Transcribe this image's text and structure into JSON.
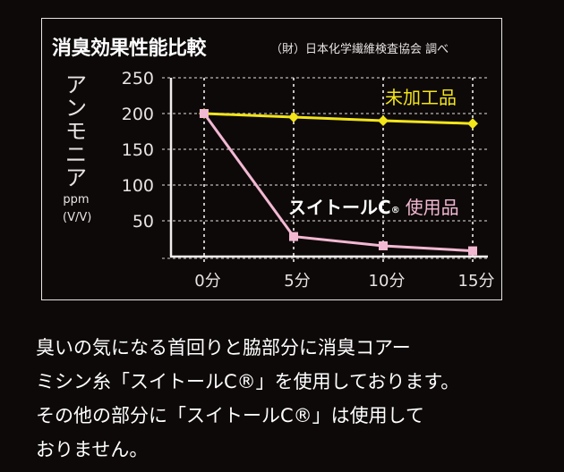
{
  "header": {
    "title": "消臭効果性能比較",
    "source": "（財）日本化学繊維検査協会 調べ"
  },
  "y_axis": {
    "label_chars": [
      "ア",
      "ン",
      "モ",
      "ニ",
      "ア"
    ],
    "unit1": "ppm",
    "unit2": "(V/V)"
  },
  "legend": {
    "untreated": "未加工品",
    "treated_brand": "スイトールC",
    "treated_reg": "®",
    "treated_suffix": "使用品"
  },
  "colors": {
    "background": "#0e0909",
    "untreated": "#f2e51a",
    "treated": "#f2b8d2",
    "text": "#ffffff",
    "grid": "#cfcaca"
  },
  "chart_data": {
    "type": "line",
    "title": "消臭効果性能比較",
    "subtitle": "（財）日本化学繊維検査協会 調べ",
    "xlabel": "",
    "ylabel": "アンモニア ppm (V/V)",
    "categories": [
      "0分",
      "5分",
      "10分",
      "15分"
    ],
    "x": [
      0,
      5,
      10,
      15
    ],
    "yticks": [
      50,
      100,
      150,
      200,
      250
    ],
    "ylim": [
      0,
      250
    ],
    "grid": true,
    "series": [
      {
        "name": "未加工品",
        "color": "#f2e51a",
        "marker": "diamond",
        "values": [
          200,
          195,
          190,
          186
        ]
      },
      {
        "name": "スイトールC® 使用品",
        "color": "#f2b8d2",
        "marker": "square",
        "values": [
          200,
          28,
          15,
          8
        ]
      }
    ]
  },
  "paragraph": {
    "lines": [
      "臭いの気になる首回りと脇部分に消臭コアー",
      "ミシン糸「スイトールC®」を使用しております。",
      "その他の部分に「スイトールC®」は使用して",
      "おりません。"
    ]
  }
}
